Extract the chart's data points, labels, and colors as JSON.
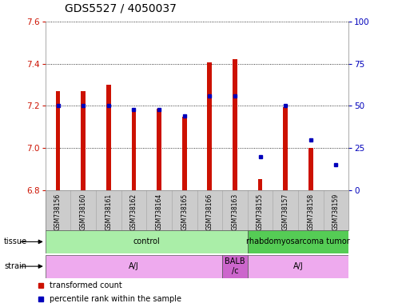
{
  "title": "GDS5527 / 4050037",
  "samples": [
    "GSM738156",
    "GSM738160",
    "GSM738161",
    "GSM738162",
    "GSM738164",
    "GSM738165",
    "GSM738166",
    "GSM738163",
    "GSM738155",
    "GSM738157",
    "GSM738158",
    "GSM738159"
  ],
  "red_values": [
    7.27,
    7.27,
    7.3,
    7.185,
    7.185,
    7.15,
    7.405,
    7.42,
    6.855,
    7.195,
    7.0,
    6.8
  ],
  "blue_values": [
    50,
    50,
    50,
    48,
    48,
    44,
    56,
    56,
    20,
    50,
    30,
    15
  ],
  "ylim_left": [
    6.8,
    7.6
  ],
  "ylim_right": [
    0,
    100
  ],
  "yticks_left": [
    6.8,
    7.0,
    7.2,
    7.4,
    7.6
  ],
  "yticks_right": [
    0,
    25,
    50,
    75,
    100
  ],
  "red_color": "#cc1100",
  "blue_color": "#0000bb",
  "bar_base": 6.8,
  "bar_width": 0.18,
  "tissue_groups": [
    {
      "label": "control",
      "start": 0,
      "end": 8,
      "color": "#aaeea8"
    },
    {
      "label": "rhabdomyosarcoma tumor",
      "start": 8,
      "end": 12,
      "color": "#55cc55"
    }
  ],
  "strain_groups": [
    {
      "label": "A/J",
      "start": 0,
      "end": 7,
      "color": "#eeaaee"
    },
    {
      "label": "BALB\n/c",
      "start": 7,
      "end": 8,
      "color": "#cc66cc"
    },
    {
      "label": "A/J",
      "start": 8,
      "end": 12,
      "color": "#eeaaee"
    }
  ],
  "sample_bg_color": "#cccccc",
  "plot_bg": "#ffffff",
  "legend_red": "transformed count",
  "legend_blue": "percentile rank within the sample",
  "grid_color": "#000000",
  "title_fontsize": 10,
  "tick_fontsize": 7.5,
  "sample_fontsize": 5.5,
  "row_fontsize": 7,
  "legend_fontsize": 7
}
